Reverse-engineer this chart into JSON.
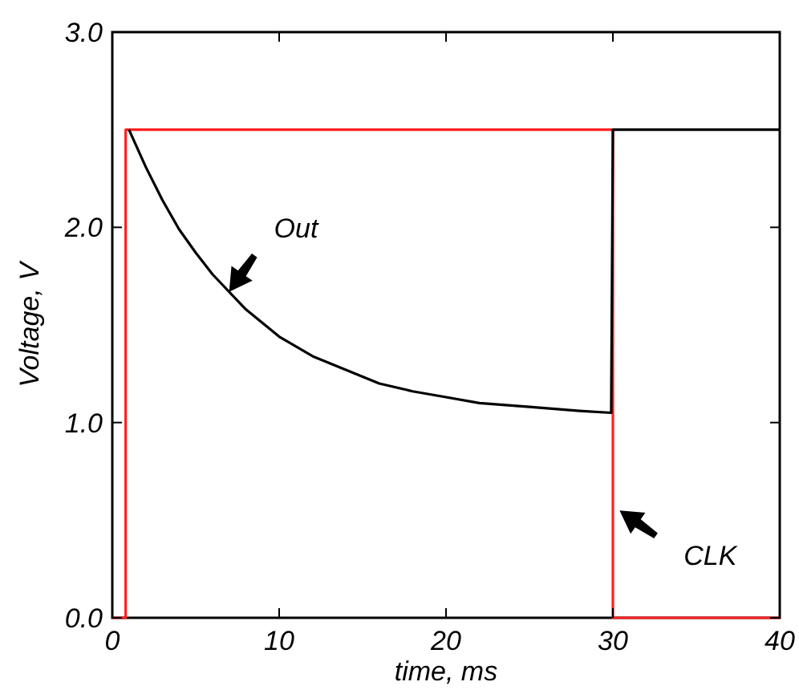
{
  "chart_data": {
    "type": "line",
    "xlabel": "time, ms",
    "ylabel": "Voltage, V",
    "xlim": [
      0,
      40
    ],
    "ylim": [
      0,
      3
    ],
    "xticks": [
      0,
      10,
      20,
      30,
      40
    ],
    "yticks": [
      {
        "value": 0,
        "label": "0.0"
      },
      {
        "value": 1,
        "label": "1.0"
      },
      {
        "value": 2,
        "label": "2.0"
      },
      {
        "value": 3,
        "label": "3.0"
      }
    ],
    "grid": false,
    "line_style": "solid",
    "series": [
      {
        "color": "#ff2020",
        "x": [
          0,
          0.8,
          0.8,
          30,
          30,
          40
        ],
        "values": [
          0,
          0,
          2.5,
          2.5,
          0,
          0
        ]
      },
      {
        "color": "#000000",
        "x": [
          1,
          2,
          3,
          4,
          5,
          6,
          8,
          10,
          12,
          14,
          16,
          18,
          20,
          22,
          25,
          28,
          29.9,
          30,
          40
        ],
        "values": [
          2.5,
          2.31,
          2.14,
          1.99,
          1.87,
          1.76,
          1.58,
          1.44,
          1.34,
          1.27,
          1.2,
          1.16,
          1.13,
          1.1,
          1.08,
          1.06,
          1.05,
          2.5,
          2.5
        ]
      }
    ],
    "annotations": [
      {
        "text": "Out",
        "x": 7,
        "y": 1.67
      },
      {
        "text": "CLK",
        "x": 30.4,
        "y": 0.55
      }
    ]
  }
}
